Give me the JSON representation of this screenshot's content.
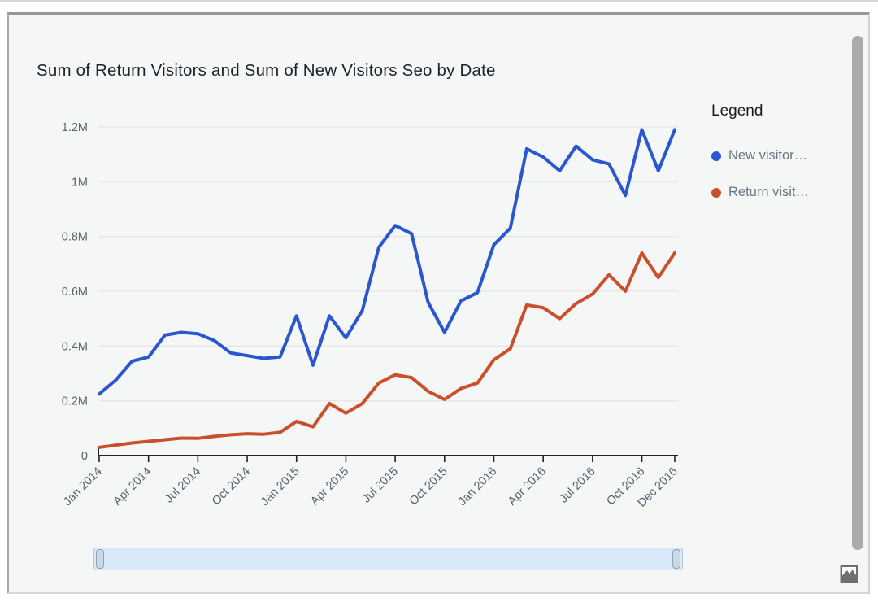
{
  "card": {
    "title": "Sum of Return Visitors and Sum of New Visitors Seo by Date"
  },
  "legend": {
    "title": "Legend"
  },
  "chart_data": {
    "type": "line",
    "title": "Sum of Return Visitors and Sum of New Visitors Seo by Date",
    "x_categories": [
      "Jan 2014",
      "Feb 2014",
      "Mar 2014",
      "Apr 2014",
      "May 2014",
      "Jun 2014",
      "Jul 2014",
      "Aug 2014",
      "Sep 2014",
      "Oct 2014",
      "Nov 2014",
      "Dec 2014",
      "Jan 2015",
      "Feb 2015",
      "Mar 2015",
      "Apr 2015",
      "May 2015",
      "Jun 2015",
      "Jul 2015",
      "Aug 2015",
      "Sep 2015",
      "Oct 2015",
      "Nov 2015",
      "Dec 2015",
      "Jan 2016",
      "Feb 2016",
      "Mar 2016",
      "Apr 2016",
      "May 2016",
      "Jun 2016",
      "Jul 2016",
      "Aug 2016",
      "Sep 2016",
      "Oct 2016",
      "Nov 2016",
      "Dec 2016"
    ],
    "series": [
      {
        "name": "New visitors Seo",
        "legend_label": "New visitor…",
        "color": "#2a57d0",
        "values_millions": [
          0.225,
          0.275,
          0.345,
          0.36,
          0.44,
          0.45,
          0.445,
          0.42,
          0.375,
          0.365,
          0.355,
          0.36,
          0.51,
          0.33,
          0.51,
          0.43,
          0.53,
          0.76,
          0.84,
          0.81,
          0.56,
          0.45,
          0.565,
          0.595,
          0.77,
          0.83,
          1.12,
          1.09,
          1.04,
          1.13,
          1.08,
          1.065,
          0.95,
          1.19,
          1.04,
          1.19
        ]
      },
      {
        "name": "Return visitors",
        "legend_label": "Return visit…",
        "color": "#cc4f2c",
        "values_millions": [
          0.03,
          0.038,
          0.046,
          0.052,
          0.058,
          0.064,
          0.063,
          0.07,
          0.076,
          0.08,
          0.078,
          0.085,
          0.125,
          0.105,
          0.19,
          0.155,
          0.19,
          0.265,
          0.295,
          0.285,
          0.235,
          0.205,
          0.245,
          0.265,
          0.35,
          0.39,
          0.55,
          0.54,
          0.5,
          0.555,
          0.59,
          0.66,
          0.6,
          0.74,
          0.65,
          0.74
        ]
      }
    ],
    "xlabel": "",
    "ylabel": "",
    "values_unit": "millions",
    "ylim_millions": [
      0,
      1.2
    ],
    "ytick_values_millions": [
      0,
      0.2,
      0.4,
      0.6,
      0.8,
      1,
      1.2
    ],
    "ytick_labels": [
      "0",
      "0.2M",
      "0.4M",
      "0.6M",
      "0.8M",
      "1M",
      "1.2M"
    ],
    "xtick_labels": [
      "Jan 2014",
      "Apr 2014",
      "Jul 2014",
      "Oct 2014",
      "Jan 2015",
      "Apr 2015",
      "Jul 2015",
      "Oct 2015",
      "Jan 2016",
      "Apr 2016",
      "Jul 2016",
      "Oct 2016",
      "Dec 2016"
    ],
    "xtick_month_indices": [
      0,
      3,
      6,
      9,
      12,
      15,
      18,
      21,
      24,
      27,
      30,
      33,
      35
    ],
    "grid": true,
    "legend_position": "right",
    "axis_color": "#1c232d",
    "grid_color": "#e7e7e7",
    "tick_label_color": "#56616e"
  }
}
